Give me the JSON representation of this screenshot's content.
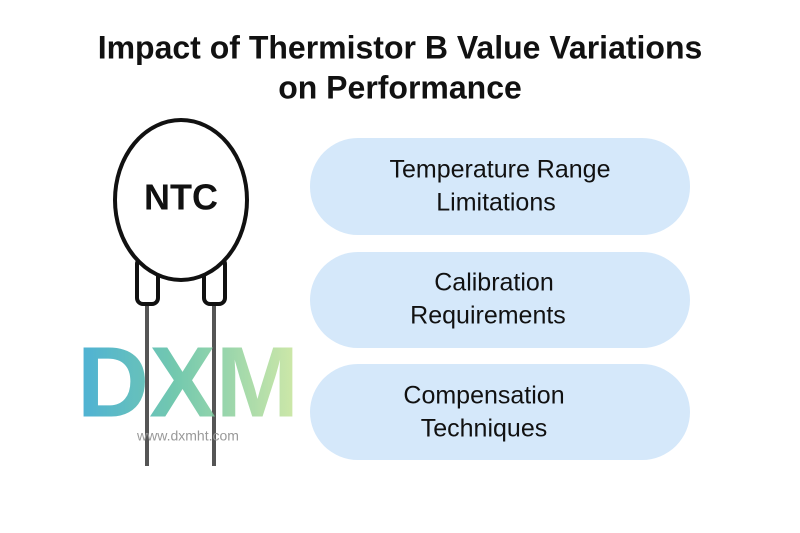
{
  "title": {
    "lines": [
      "Impact of Thermistor B Value Variations",
      "on Performance"
    ]
  },
  "component": {
    "label": "NTC"
  },
  "watermark": {
    "logo": "DXM",
    "url": "www.dxmht.com"
  },
  "items": [
    {
      "lines": [
        "Temperature Range",
        "Limitations"
      ]
    },
    {
      "lines": [
        "Calibration",
        "Requirements"
      ]
    },
    {
      "lines": [
        "Compensation",
        "Techniques"
      ]
    }
  ]
}
